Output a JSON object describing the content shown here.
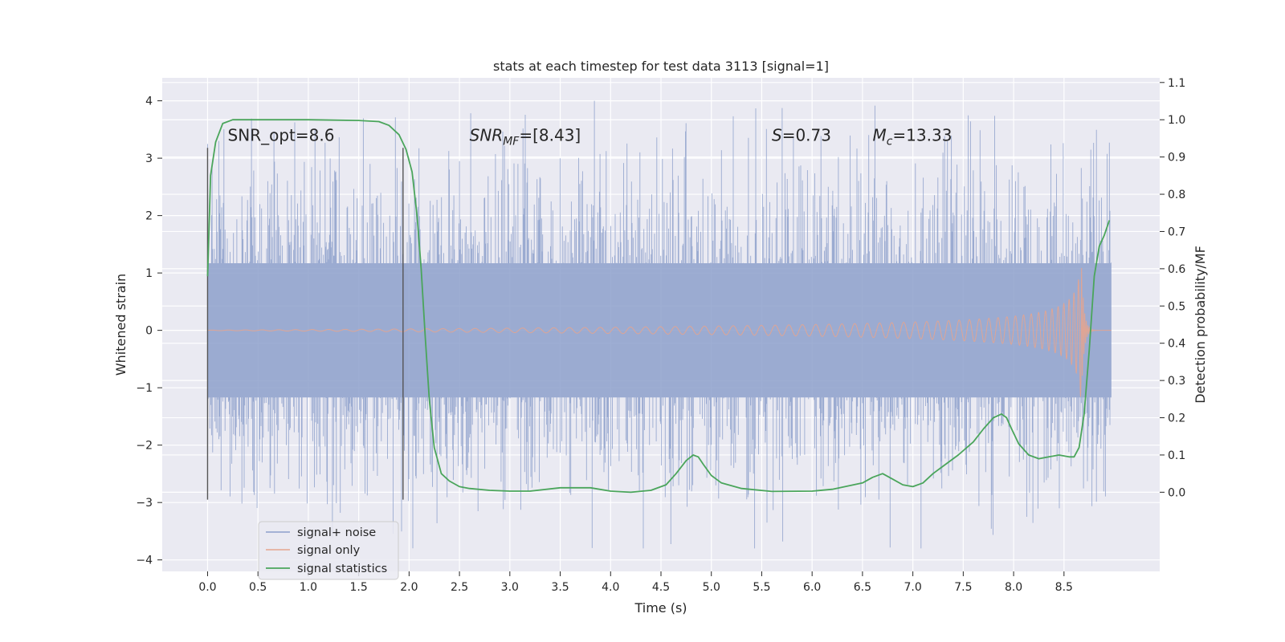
{
  "chart_data": {
    "type": "line",
    "title": "stats at each timestep for test data 3113 [signal=1]",
    "xlabel": "Time (s)",
    "ylabel": "Whitened strain",
    "y2label": "Detection probability/MF",
    "xlim": [
      -0.45,
      9.45
    ],
    "ylim": [
      -4.2,
      4.4
    ],
    "y2lim": [
      -0.2125,
      1.1125
    ],
    "grid": true,
    "legend_position": "lower-left",
    "x_ticks": [
      0.0,
      0.5,
      1.0,
      1.5,
      2.0,
      2.5,
      3.0,
      3.5,
      4.0,
      4.5,
      5.0,
      5.5,
      6.0,
      6.5,
      7.0,
      7.5,
      8.0,
      8.5
    ],
    "x_tick_labels": [
      "0.0",
      "0.5",
      "1.0",
      "1.5",
      "2.0",
      "2.5",
      "3.0",
      "3.5",
      "4.0",
      "4.5",
      "5.0",
      "5.5",
      "6.0",
      "6.5",
      "7.0",
      "7.5",
      "8.0",
      "8.5"
    ],
    "y_ticks": [
      4,
      3,
      2,
      1,
      0,
      -1,
      -2,
      -3,
      -4
    ],
    "y_tick_labels": [
      "4",
      "3",
      "2",
      "1",
      "0",
      "−1",
      "−2",
      "−3",
      "−4"
    ],
    "y2_ticks": [
      1.1,
      1.0,
      0.9,
      0.8,
      0.7,
      0.6,
      0.5,
      0.4,
      0.3,
      0.2,
      0.1,
      0.0
    ],
    "y2_tick_labels": [
      "1.1",
      "1.0",
      "0.9",
      "0.8",
      "0.7",
      "0.6",
      "0.5",
      "0.4",
      "0.3",
      "0.2",
      "0.1",
      "0.0"
    ],
    "vlines": [
      {
        "x": 0.0,
        "ymin": -2.95,
        "ymax": 3.18
      },
      {
        "x": 1.94,
        "ymin": -2.95,
        "ymax": 3.18
      }
    ],
    "annotations": [
      {
        "label": "SNR_opt=8.6",
        "x": 0.2,
        "y": 3.3
      },
      {
        "label": "SNR",
        "subscript": "MF",
        "value": "=[8.43]",
        "italic": true,
        "x": 2.6,
        "y": 3.3
      },
      {
        "label": "S",
        "subscript": "",
        "value": "=0.73",
        "italic": true,
        "x": 5.6,
        "y": 3.3
      },
      {
        "label": "M",
        "subscript": "c",
        "value": "=13.33",
        "italic": true,
        "x": 6.6,
        "y": 3.3
      }
    ],
    "series": [
      {
        "name": "signal+ noise",
        "color": "#8da0cb",
        "axis": "left",
        "style": "noise band",
        "x_range": [
          0.0,
          8.97
        ],
        "typical_range": [
          -1.3,
          1.3
        ],
        "peak_range": [
          -3.8,
          4.0
        ]
      },
      {
        "name": "signal only",
        "color": "#e5a48e",
        "axis": "left",
        "style": "chirp",
        "x_range": [
          0.0,
          8.97
        ],
        "merger_time": 8.67,
        "peak_amplitude": 1.3
      },
      {
        "name": "signal statistics",
        "color": "#4aa55b",
        "axis": "right",
        "x": [
          0.0,
          0.03,
          0.08,
          0.15,
          0.25,
          0.5,
          1.0,
          1.5,
          1.7,
          1.8,
          1.9,
          1.97,
          2.03,
          2.08,
          2.12,
          2.16,
          2.2,
          2.25,
          2.32,
          2.4,
          2.5,
          2.6,
          2.8,
          3.0,
          3.2,
          3.5,
          3.8,
          4.0,
          4.2,
          4.4,
          4.55,
          4.65,
          4.75,
          4.82,
          4.87,
          4.92,
          5.0,
          5.1,
          5.3,
          5.6,
          6.0,
          6.2,
          6.5,
          6.6,
          6.7,
          6.8,
          6.9,
          7.0,
          7.1,
          7.2,
          7.3,
          7.45,
          7.6,
          7.7,
          7.8,
          7.88,
          7.93,
          7.98,
          8.05,
          8.15,
          8.25,
          8.35,
          8.45,
          8.55,
          8.6,
          8.65,
          8.7,
          8.75,
          8.8,
          8.85,
          8.9,
          8.95
        ],
        "y": [
          0.58,
          0.85,
          0.94,
          0.99,
          1.0,
          1.0,
          1.0,
          0.998,
          0.995,
          0.985,
          0.96,
          0.92,
          0.86,
          0.74,
          0.6,
          0.42,
          0.25,
          0.12,
          0.05,
          0.03,
          0.015,
          0.01,
          0.005,
          0.003,
          0.003,
          0.012,
          0.012,
          0.003,
          0.0,
          0.005,
          0.02,
          0.05,
          0.085,
          0.1,
          0.095,
          0.075,
          0.045,
          0.025,
          0.01,
          0.002,
          0.003,
          0.008,
          0.025,
          0.04,
          0.05,
          0.035,
          0.02,
          0.015,
          0.025,
          0.05,
          0.07,
          0.1,
          0.135,
          0.17,
          0.2,
          0.21,
          0.2,
          0.17,
          0.13,
          0.1,
          0.09,
          0.095,
          0.1,
          0.095,
          0.095,
          0.12,
          0.21,
          0.38,
          0.58,
          0.66,
          0.69,
          0.73
        ]
      }
    ]
  }
}
